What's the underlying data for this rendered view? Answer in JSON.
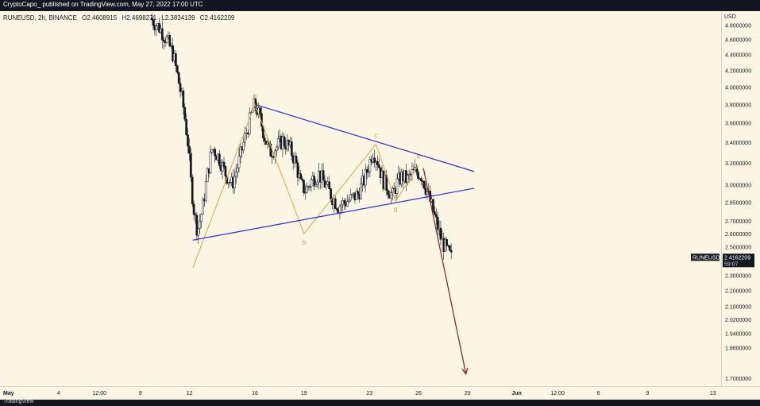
{
  "header": {
    "text": "CryptoCapo_ published on TradingView.com, May 27, 2022 17:00 UTC"
  },
  "footer": {
    "text": "TradingView"
  },
  "legend": {
    "symbol": "RUNEUSD, 2h, BINANCE",
    "open": "O2.4608915",
    "high": "H2.4698271",
    "low": "L2.3834139",
    "close": "C2.4162209"
  },
  "colors": {
    "background": "#fbf6e4",
    "trendline": "#2d2bd6",
    "wave": "#e7a13a",
    "projection": "#8b1a1a",
    "candle_up": "#ffffff",
    "candle_down": "#131722"
  },
  "chart_data": {
    "type": "candlestick",
    "symbol": "RUNEUSD",
    "interval": "2h",
    "exchange": "BINANCE",
    "currency": "USD",
    "y_scale": "log",
    "ylim": [
      1.66,
      5.0
    ],
    "last_price": {
      "label": "RUNEUSD",
      "value": "2.4162209",
      "countdown": "59:07"
    },
    "y_ticks": [
      "4.8000000",
      "4.6000000",
      "4.4000000",
      "4.2000000",
      "4.0000000",
      "3.8000000",
      "3.6000000",
      "3.4000000",
      "3.2000000",
      "3.0000000",
      "2.8500000",
      "2.7000000",
      "2.6000000",
      "2.5000000",
      "2.3000000",
      "2.2000000",
      "2.1000000",
      "2.0200000",
      "1.9400000",
      "1.8600000",
      "1.7000000"
    ],
    "x_ticks": [
      {
        "label": "May",
        "t": 0
      },
      {
        "label": "4",
        "t": 3
      },
      {
        "label": "12:00",
        "t": 5.5
      },
      {
        "label": "9",
        "t": 8
      },
      {
        "label": "12",
        "t": 11
      },
      {
        "label": "16",
        "t": 15
      },
      {
        "label": "19",
        "t": 18
      },
      {
        "label": "23",
        "t": 22
      },
      {
        "label": "26",
        "t": 25
      },
      {
        "label": "29",
        "t": 28
      },
      {
        "label": "Jun",
        "t": 31
      },
      {
        "label": "12:00",
        "t": 33.5
      },
      {
        "label": "6",
        "t": 36
      },
      {
        "label": "9",
        "t": 39
      },
      {
        "label": "13",
        "t": 43
      }
    ],
    "price_path": [
      [
        8.6,
        4.9
      ],
      [
        9.2,
        4.75
      ],
      [
        9.6,
        4.6
      ],
      [
        10.0,
        4.4
      ],
      [
        10.3,
        4.1
      ],
      [
        10.6,
        3.8
      ],
      [
        10.9,
        3.4
      ],
      [
        11.1,
        3.0
      ],
      [
        11.3,
        2.75
      ],
      [
        11.5,
        2.62
      ],
      [
        11.8,
        2.8
      ],
      [
        12.1,
        3.1
      ],
      [
        12.4,
        3.35
      ],
      [
        12.8,
        3.25
      ],
      [
        13.2,
        3.1
      ],
      [
        13.6,
        3.0
      ],
      [
        14.0,
        3.2
      ],
      [
        14.4,
        3.45
      ],
      [
        14.8,
        3.7
      ],
      [
        15.0,
        3.8
      ],
      [
        15.3,
        3.65
      ],
      [
        15.6,
        3.45
      ],
      [
        15.9,
        3.3
      ],
      [
        16.3,
        3.35
      ],
      [
        16.7,
        3.42
      ],
      [
        17.1,
        3.35
      ],
      [
        17.5,
        3.2
      ],
      [
        17.8,
        3.0
      ],
      [
        18.1,
        2.95
      ],
      [
        18.5,
        3.05
      ],
      [
        18.9,
        3.1
      ],
      [
        19.3,
        3.0
      ],
      [
        19.7,
        2.9
      ],
      [
        20.1,
        2.82
      ],
      [
        20.5,
        2.85
      ],
      [
        20.9,
        2.88
      ],
      [
        21.3,
        2.92
      ],
      [
        21.7,
        3.05
      ],
      [
        22.0,
        3.2
      ],
      [
        22.2,
        3.32
      ],
      [
        22.5,
        3.22
      ],
      [
        22.8,
        3.05
      ],
      [
        23.1,
        2.98
      ],
      [
        23.4,
        2.9
      ],
      [
        23.7,
        3.02
      ],
      [
        24.0,
        3.08
      ],
      [
        24.3,
        3.04
      ],
      [
        24.6,
        3.1
      ],
      [
        24.9,
        3.12
      ],
      [
        25.2,
        3.08
      ],
      [
        25.5,
        2.95
      ],
      [
        25.8,
        2.82
      ],
      [
        26.1,
        2.68
      ],
      [
        26.4,
        2.55
      ],
      [
        26.7,
        2.48
      ],
      [
        27.0,
        2.42
      ]
    ],
    "trendlines": [
      {
        "name": "upper",
        "from": [
          15.0,
          3.8
        ],
        "to": [
          28.4,
          3.12
        ]
      },
      {
        "name": "lower",
        "from": [
          11.2,
          2.55
        ],
        "to": [
          28.4,
          2.97
        ]
      }
    ],
    "waves": [
      {
        "label": "a",
        "t": 15.0,
        "value": 3.8
      },
      {
        "label": "b",
        "t": 18.0,
        "value": 2.6
      },
      {
        "label": "c",
        "t": 22.4,
        "value": 3.38
      },
      {
        "label": "d",
        "t": 23.6,
        "value": 2.86
      },
      {
        "label": "e",
        "t": 25.0,
        "value": 3.18
      }
    ],
    "wave_path": [
      [
        11.2,
        2.35
      ],
      [
        15.0,
        3.8
      ],
      [
        18.0,
        2.6
      ],
      [
        22.4,
        3.38
      ],
      [
        23.6,
        2.86
      ],
      [
        25.0,
        3.18
      ]
    ],
    "projection": {
      "from": [
        25.3,
        3.15
      ],
      "to": [
        27.9,
        1.72
      ]
    }
  }
}
